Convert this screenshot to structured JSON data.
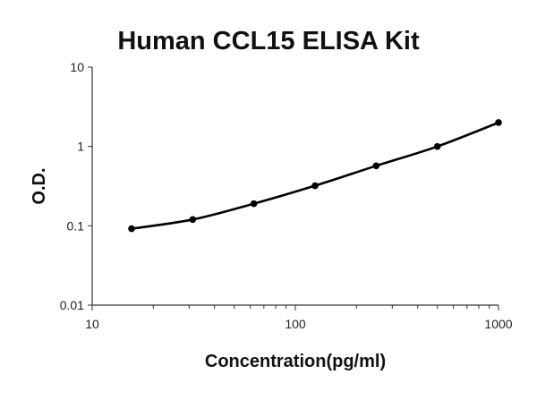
{
  "chart_data": {
    "type": "line",
    "title": "Human CCL15 ELISA Kit",
    "xlabel": "Concentration(pg/ml)",
    "ylabel": "O.D.",
    "xscale": "log",
    "yscale": "log",
    "xlim": [
      10,
      1000
    ],
    "ylim": [
      0.01,
      10
    ],
    "x_ticks": [
      "10",
      "100",
      "1000"
    ],
    "y_ticks": [
      "0.01",
      "0.1",
      "1",
      "10"
    ],
    "grid": false,
    "legend": "none",
    "series": [
      {
        "x": [
          15.625,
          31.25,
          62.5,
          125,
          250,
          500,
          1000
        ],
        "y": [
          0.092,
          0.12,
          0.19,
          0.32,
          0.57,
          1.0,
          2.0
        ]
      }
    ],
    "colors": {
      "line": "#000000",
      "marker": "#000000"
    }
  }
}
